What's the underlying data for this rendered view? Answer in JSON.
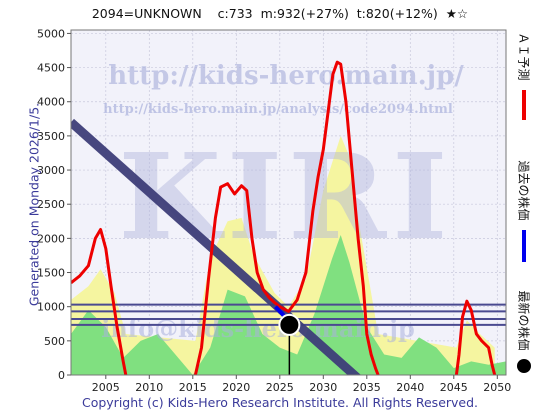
{
  "header": {
    "code": "2094=UNKNOWN",
    "c": "c:733",
    "m": "m:932(+27%)",
    "t": "t:820(+12%)",
    "stars": "★☆"
  },
  "side_label": "Generated on Monday 2026/1/5.",
  "footer": "Copyright (c) Kids-Hero Research Institute. All Rights Reserved.",
  "watermarks": {
    "url": "http://kids-hero.main.jp/",
    "analysis_url": "http://kids-hero.main.jp/analysis/code2094.html",
    "big": "KIRI",
    "email": "info@kids-hero.main.jp"
  },
  "legend": [
    {
      "label": "ＡＩ予測",
      "color": "#ee0000"
    },
    {
      "label": "過去の株価",
      "color": "#0000ee"
    },
    {
      "label": "最新の株価",
      "color": "#000000"
    }
  ],
  "colors": {
    "plot_bg": "#f2f2fa",
    "regression": "#3d3d78",
    "hline": "#4a4a90",
    "yellow_fill": "#f5f5a0",
    "green_fill": "#80e080",
    "prediction": "#ee0000",
    "past_price": "#0000ee",
    "latest_marker": "#000000"
  },
  "chart_data": {
    "type": "line",
    "x_range": [
      2001,
      2051
    ],
    "y_range": [
      0,
      5050
    ],
    "x_ticks": [
      2005,
      2010,
      2015,
      2020,
      2025,
      2030,
      2035,
      2040,
      2045,
      2050
    ],
    "y_ticks": [
      0,
      500,
      1000,
      1500,
      2000,
      2500,
      3000,
      3500,
      4000,
      4500,
      5000
    ],
    "horizontal_lines": [
      733,
      820,
      932,
      1030
    ],
    "regression_line": {
      "x": [
        2001,
        2034
      ],
      "y": [
        3700,
        -50
      ]
    },
    "past_price": {
      "x": [
        2024.5,
        2026
      ],
      "y": [
        1000,
        800
      ]
    },
    "latest": {
      "x": 2026.1,
      "y": 733
    },
    "prediction": {
      "x": [
        2001,
        2002,
        2003,
        2003.8,
        2004.4,
        2005,
        2005.6,
        2006.3,
        2007,
        2007.3,
        2015.3,
        2016,
        2016.8,
        2017.6,
        2018.2,
        2019,
        2019.8,
        2020.6,
        2021.2,
        2021.8,
        2022.4,
        2023.1,
        2023.8,
        2024.4,
        2025,
        2026,
        2027,
        2028,
        2028.8,
        2029.4,
        2030,
        2030.6,
        2031.1,
        2031.6,
        2032,
        2032.6,
        2033.3,
        2034,
        2034.6,
        2035,
        2035.5,
        2036,
        2036.3,
        2045.3,
        2045.6,
        2046,
        2046.5,
        2047,
        2047.6,
        2048.2,
        2049,
        2049.4,
        2049.7
      ],
      "y": [
        1350,
        1450,
        1600,
        2000,
        2130,
        1850,
        1300,
        700,
        200,
        0,
        0,
        400,
        1400,
        2300,
        2750,
        2800,
        2650,
        2770,
        2700,
        2000,
        1500,
        1250,
        1130,
        1060,
        1000,
        930,
        1100,
        1500,
        2400,
        2900,
        3300,
        3900,
        4400,
        4580,
        4550,
        4000,
        3000,
        2000,
        1300,
        600,
        300,
        100,
        0,
        0,
        300,
        850,
        1080,
        950,
        600,
        500,
        400,
        150,
        0
      ]
    },
    "yellow_band": {
      "x": [
        2001,
        2003,
        2004.4,
        2006,
        2007.3,
        2015.3,
        2017,
        2019,
        2020.6,
        2022,
        2024.4,
        2026,
        2028,
        2030,
        2032,
        2033,
        2034,
        2035.5,
        2036.3,
        2045.3,
        2046.5,
        2048,
        2049.7
      ],
      "y": [
        1100,
        1300,
        1550,
        1200,
        600,
        500,
        1700,
        2250,
        2300,
        1750,
        1200,
        1000,
        1400,
        2700,
        3500,
        3200,
        2300,
        1200,
        600,
        400,
        800,
        600,
        400
      ]
    },
    "green_band": {
      "x": [
        2001,
        2003,
        2005,
        2007,
        2009,
        2011,
        2013,
        2015,
        2017,
        2019,
        2021,
        2023,
        2025,
        2027,
        2029,
        2031,
        2032,
        2033,
        2035,
        2037,
        2039,
        2041,
        2043,
        2045,
        2047,
        2049,
        2051
      ],
      "y": [
        600,
        950,
        700,
        250,
        500,
        600,
        300,
        0,
        400,
        1250,
        1150,
        600,
        400,
        300,
        900,
        1700,
        2050,
        1650,
        700,
        300,
        250,
        550,
        400,
        100,
        200,
        150,
        200
      ]
    }
  }
}
